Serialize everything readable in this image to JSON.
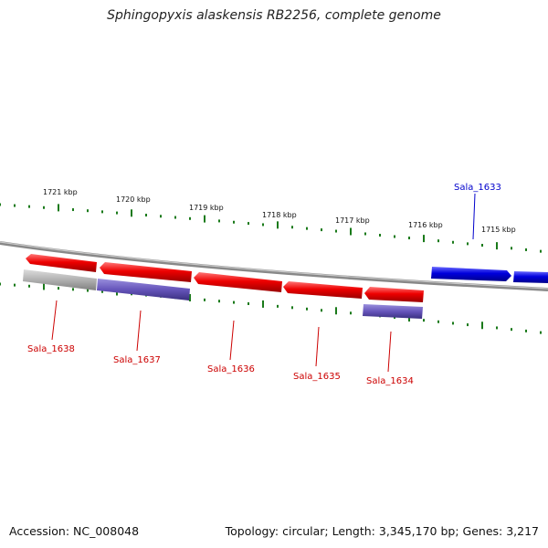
{
  "title": "Sphingopyxis alaskensis RB2256, complete genome",
  "footer": {
    "accession": "Accession: NC_008048",
    "summary": "Topology: circular; Length: 3,345,170 bp; Genes: 3,217"
  },
  "colors": {
    "forward_gene": "#0000dd",
    "reverse_gene": "#ee0000",
    "cds_reverse": "#6655bb",
    "cds_grey": "#b0b0b0",
    "backbone": "#888888",
    "tick": "#1a7a1a",
    "forward_label": "#0000cc",
    "reverse_label": "#cc0000"
  },
  "kbp_ticks": [
    "1721 kbp",
    "1720 kbp",
    "1719 kbp",
    "1718 kbp",
    "1717 kbp",
    "1716 kbp",
    "1715 kbp"
  ],
  "genes": [
    {
      "name": "Sala_1638",
      "strand": "reverse"
    },
    {
      "name": "Sala_1637",
      "strand": "reverse"
    },
    {
      "name": "Sala_1636",
      "strand": "reverse"
    },
    {
      "name": "Sala_1635",
      "strand": "reverse"
    },
    {
      "name": "Sala_1634",
      "strand": "reverse"
    },
    {
      "name": "Sala_1633",
      "strand": "forward"
    }
  ]
}
